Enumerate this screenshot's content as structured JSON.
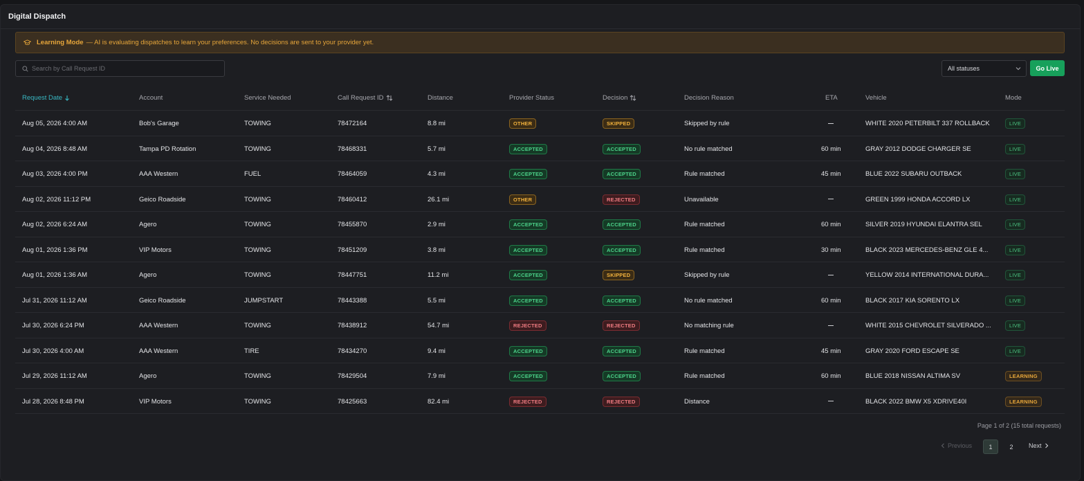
{
  "page": {
    "title": "Digital Dispatch"
  },
  "banner": {
    "icon": "graduation-cap-icon",
    "title": "Learning Mode",
    "message": "— AI is evaluating dispatches to learn your preferences. No decisions are sent to your provider yet."
  },
  "toolbar": {
    "search_placeholder": "Search by Call Request ID",
    "status_filter": "All statuses",
    "golive_label": "Go Live"
  },
  "columns": {
    "request_date": "Request Date",
    "account": "Account",
    "service": "Service Needed",
    "call_id": "Call Request ID",
    "distance": "Distance",
    "provider_status": "Provider Status",
    "decision": "Decision",
    "reason": "Decision Reason",
    "eta": "ETA",
    "vehicle": "Vehicle",
    "mode": "Mode"
  },
  "rows": [
    {
      "date": "Aug 05, 2026 4:00 AM",
      "account": "Bob's Garage",
      "service": "TOWING",
      "call_id": "78472164",
      "distance": "8.8 mi",
      "provider": "OTHER",
      "decision": "SKIPPED",
      "reason": "Skipped by rule",
      "eta": "",
      "vehicle": "WHITE 2020 PETERBILT 337 ROLLBACK",
      "mode": "LIVE"
    },
    {
      "date": "Aug 04, 2026 8:48 AM",
      "account": "Tampa PD Rotation",
      "service": "TOWING",
      "call_id": "78468331",
      "distance": "5.7 mi",
      "provider": "ACCEPTED",
      "decision": "ACCEPTED",
      "reason": "No rule matched",
      "eta": "60 min",
      "vehicle": "GRAY 2012 DODGE CHARGER SE",
      "mode": "LIVE"
    },
    {
      "date": "Aug 03, 2026 4:00 PM",
      "account": "AAA Western",
      "service": "FUEL",
      "call_id": "78464059",
      "distance": "4.3 mi",
      "provider": "ACCEPTED",
      "decision": "ACCEPTED",
      "reason": "Rule matched",
      "eta": "45 min",
      "vehicle": "BLUE 2022 SUBARU OUTBACK",
      "mode": "LIVE"
    },
    {
      "date": "Aug 02, 2026 11:12 PM",
      "account": "Geico Roadside",
      "service": "TOWING",
      "call_id": "78460412",
      "distance": "26.1 mi",
      "provider": "OTHER",
      "decision": "REJECTED",
      "reason": "Unavailable",
      "eta": "",
      "vehicle": "GREEN 1999 HONDA ACCORD LX",
      "mode": "LIVE"
    },
    {
      "date": "Aug 02, 2026 6:24 AM",
      "account": "Agero",
      "service": "TOWING",
      "call_id": "78455870",
      "distance": "2.9 mi",
      "provider": "ACCEPTED",
      "decision": "ACCEPTED",
      "reason": "Rule matched",
      "eta": "60 min",
      "vehicle": "SILVER 2019 HYUNDAI ELANTRA SEL",
      "mode": "LIVE"
    },
    {
      "date": "Aug 01, 2026 1:36 PM",
      "account": "VIP Motors",
      "service": "TOWING",
      "call_id": "78451209",
      "distance": "3.8 mi",
      "provider": "ACCEPTED",
      "decision": "ACCEPTED",
      "reason": "Rule matched",
      "eta": "30 min",
      "vehicle": "BLACK 2023 MERCEDES-BENZ GLE 4...",
      "mode": "LIVE"
    },
    {
      "date": "Aug 01, 2026 1:36 AM",
      "account": "Agero",
      "service": "TOWING",
      "call_id": "78447751",
      "distance": "11.2 mi",
      "provider": "ACCEPTED",
      "decision": "SKIPPED",
      "reason": "Skipped by rule",
      "eta": "",
      "vehicle": "YELLOW 2014 INTERNATIONAL DURA...",
      "mode": "LIVE"
    },
    {
      "date": "Jul 31, 2026 11:12 AM",
      "account": "Geico Roadside",
      "service": "JUMPSTART",
      "call_id": "78443388",
      "distance": "5.5 mi",
      "provider": "ACCEPTED",
      "decision": "ACCEPTED",
      "reason": "No rule matched",
      "eta": "60 min",
      "vehicle": "BLACK 2017 KIA SORENTO LX",
      "mode": "LIVE"
    },
    {
      "date": "Jul 30, 2026 6:24 PM",
      "account": "AAA Western",
      "service": "TOWING",
      "call_id": "78438912",
      "distance": "54.7 mi",
      "provider": "REJECTED",
      "decision": "REJECTED",
      "reason": "No matching rule",
      "eta": "",
      "vehicle": "WHITE 2015 CHEVROLET SILVERADO ...",
      "mode": "LIVE"
    },
    {
      "date": "Jul 30, 2026 4:00 AM",
      "account": "AAA Western",
      "service": "TIRE",
      "call_id": "78434270",
      "distance": "9.4 mi",
      "provider": "ACCEPTED",
      "decision": "ACCEPTED",
      "reason": "Rule matched",
      "eta": "45 min",
      "vehicle": "GRAY 2020 FORD ESCAPE SE",
      "mode": "LIVE"
    },
    {
      "date": "Jul 29, 2026 11:12 AM",
      "account": "Agero",
      "service": "TOWING",
      "call_id": "78429504",
      "distance": "7.9 mi",
      "provider": "ACCEPTED",
      "decision": "ACCEPTED",
      "reason": "Rule matched",
      "eta": "60 min",
      "vehicle": "BLUE 2018 NISSAN ALTIMA SV",
      "mode": "LEARNING"
    },
    {
      "date": "Jul 28, 2026 8:48 PM",
      "account": "VIP Motors",
      "service": "TOWING",
      "call_id": "78425663",
      "distance": "82.4 mi",
      "provider": "REJECTED",
      "decision": "REJECTED",
      "reason": "Distance",
      "eta": "",
      "vehicle": "BLACK 2022 BMW X5 XDRIVE40I",
      "mode": "LEARNING"
    }
  ],
  "pagination": {
    "summary": "Page 1 of 2 (15 total requests)",
    "previous": "Previous",
    "next": "Next",
    "pages": [
      "1",
      "2"
    ],
    "current": "1"
  },
  "colors": {
    "accent_teal": "#39b9c4",
    "go_live": "#17a05b",
    "warning": "#e7a63a",
    "accepted": "#4cd38a",
    "rejected": "#f07c82"
  }
}
